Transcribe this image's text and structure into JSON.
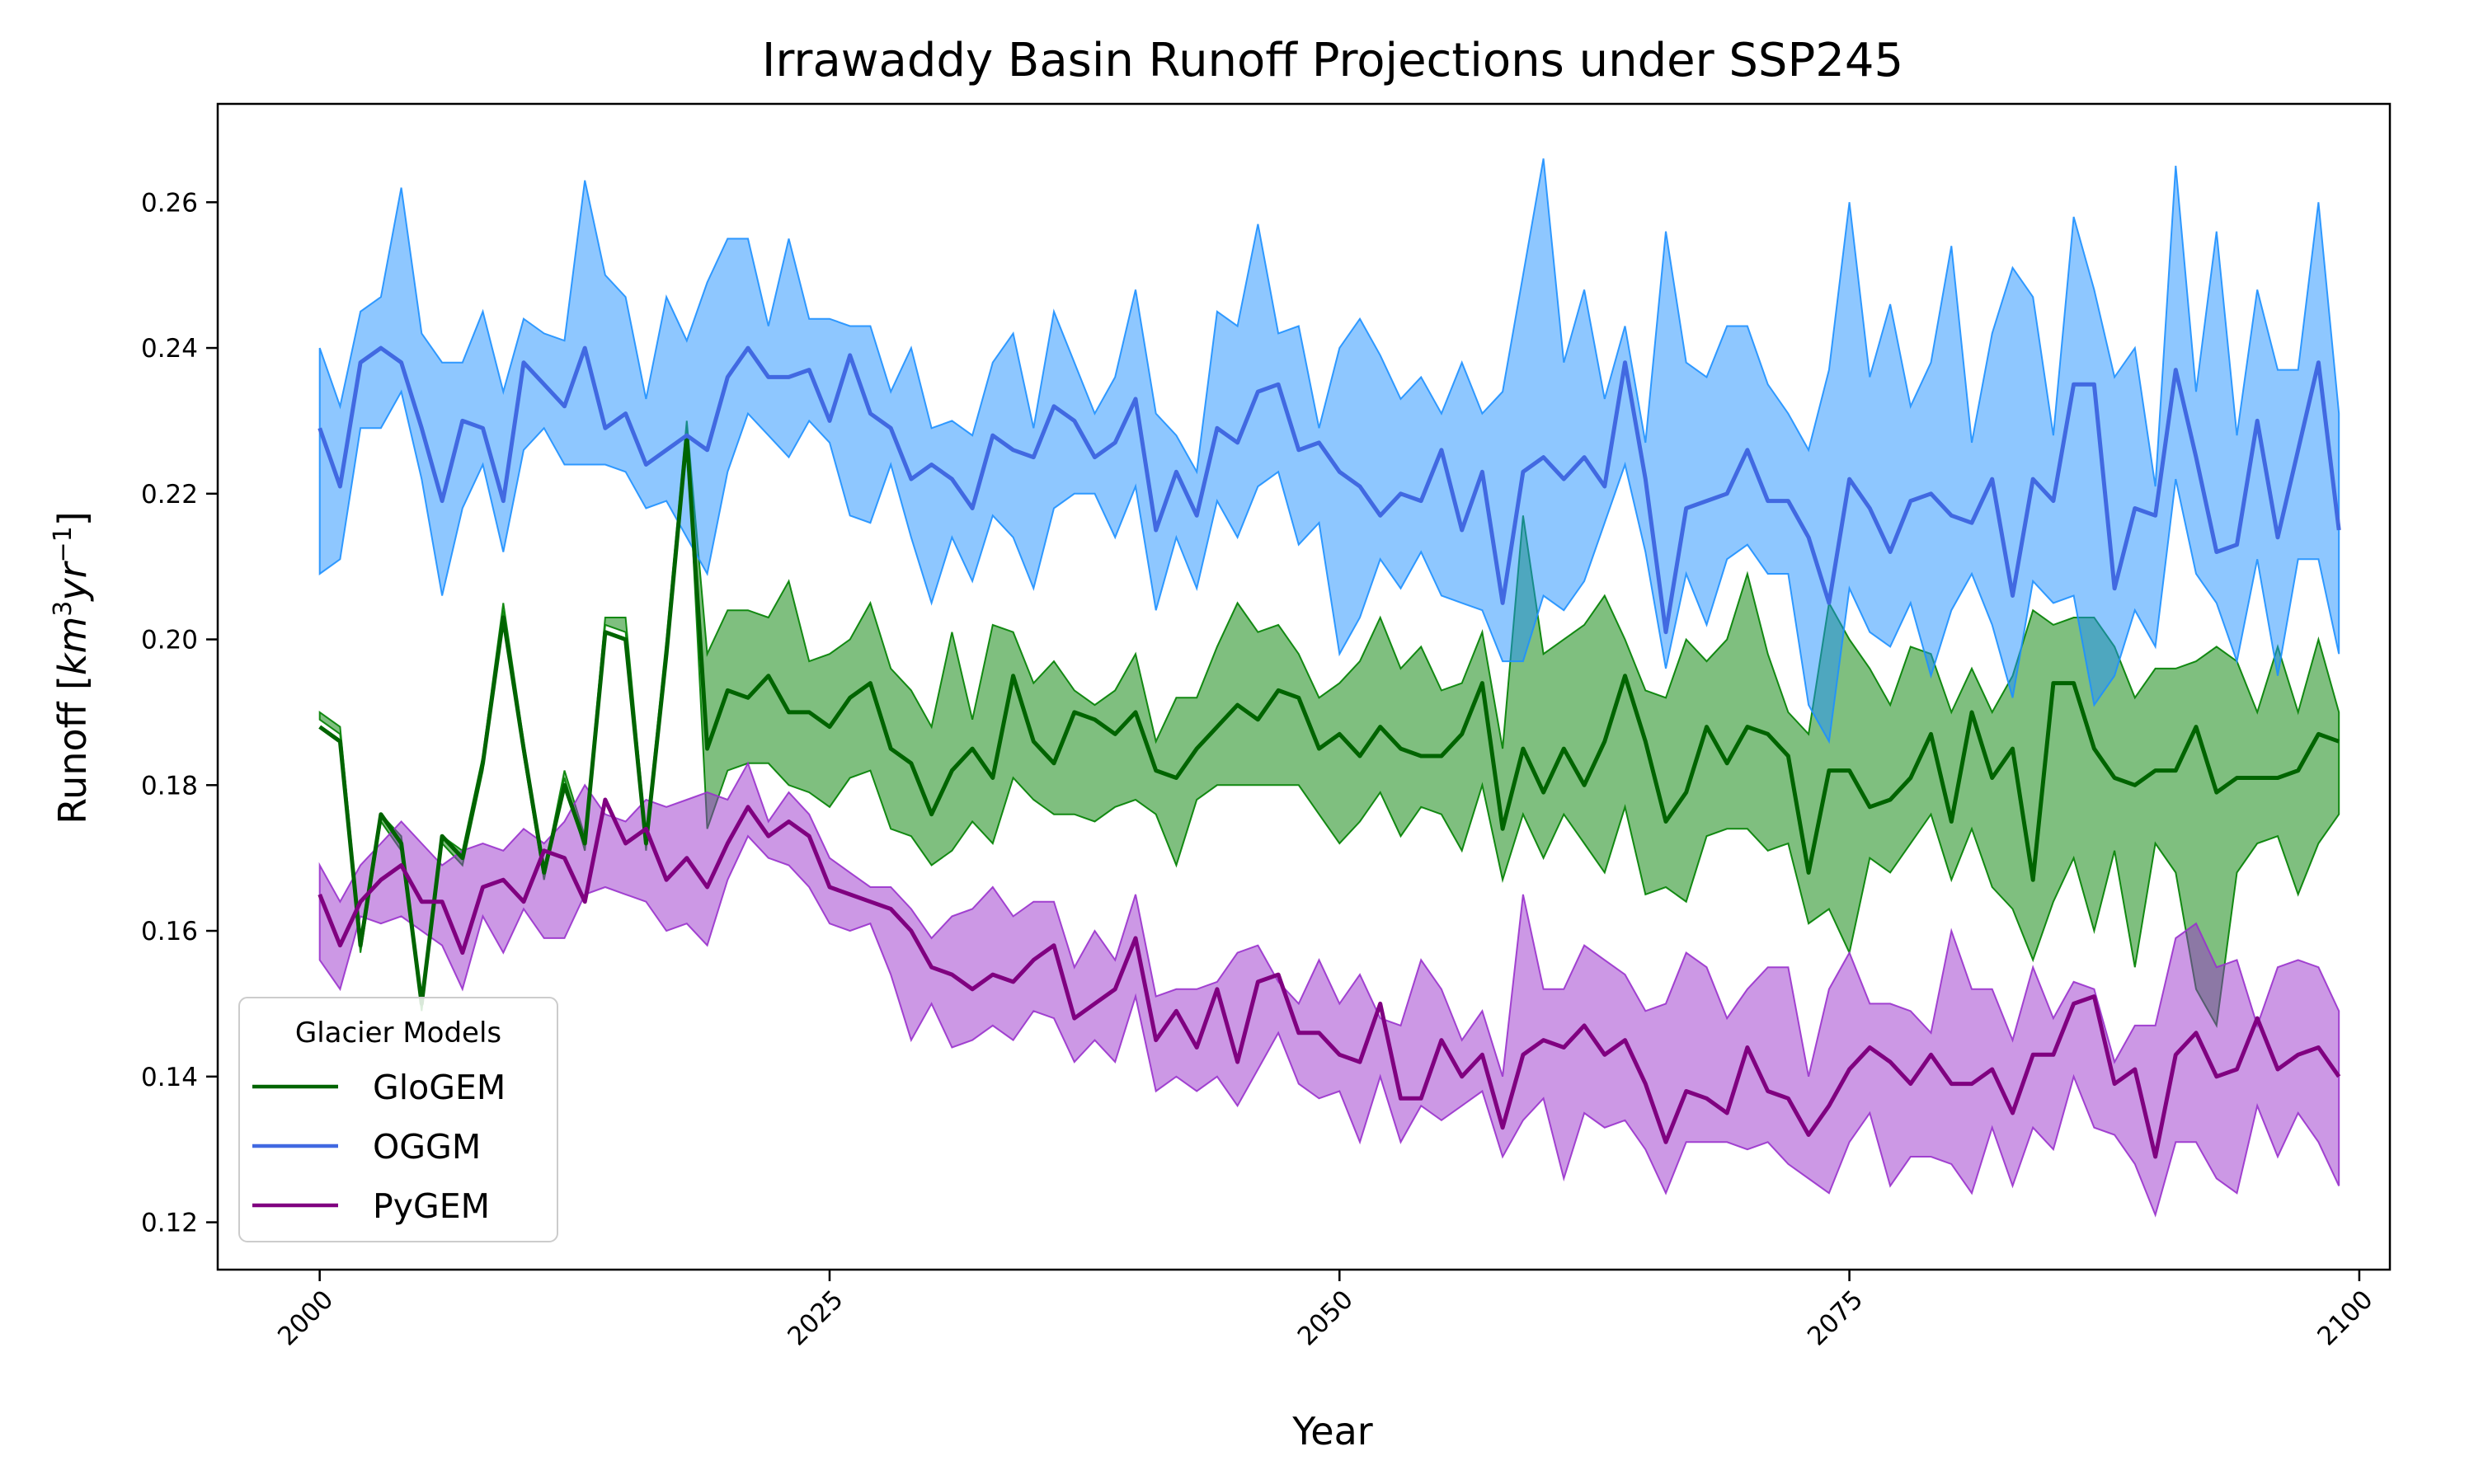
{
  "chart_data": {
    "type": "line",
    "title": "Irrawaddy Basin Runoff Projections under SSP245",
    "xlabel": "Year",
    "ylabel": "Runoff [km³yr⁻¹]",
    "ylabel_parts": {
      "base": "Runoff [",
      "var1": "km",
      "sup1": "3",
      "var2": "yr",
      "sup2": "−1",
      "close": "]"
    },
    "xlim": [
      1995,
      2101.5
    ],
    "ylim": [
      0.1135,
      0.2735
    ],
    "x_ticks": [
      2000,
      2025,
      2050,
      2075,
      2100
    ],
    "y_ticks": [
      0.12,
      0.14,
      0.16,
      0.18,
      0.2,
      0.22,
      0.24,
      0.26
    ],
    "y_tick_labels": [
      "0.12",
      "0.14",
      "0.16",
      "0.18",
      "0.20",
      "0.22",
      "0.24",
      "0.26"
    ],
    "x_tick_rotation": 45,
    "grid": false,
    "legend": {
      "title": "Glacier Models",
      "placement": "lower-left"
    },
    "x_start": 2000,
    "series": [
      {
        "name": "GloGEM",
        "color": "#006400",
        "fill": "#008000",
        "mean": [
          0.188,
          0.186,
          0.158,
          0.176,
          0.172,
          0.15,
          0.173,
          0.17,
          0.183,
          0.203,
          0.185,
          0.168,
          0.18,
          0.172,
          0.201,
          0.2,
          0.172,
          0.198,
          0.228,
          0.185,
          0.193,
          0.192,
          0.195,
          0.19,
          0.19,
          0.188,
          0.192,
          0.194,
          0.185,
          0.183,
          0.176,
          0.182,
          0.185,
          0.181,
          0.195,
          0.186,
          0.183,
          0.19,
          0.189,
          0.187,
          0.19,
          0.182,
          0.181,
          0.185,
          0.188,
          0.191,
          0.189,
          0.193,
          0.192,
          0.185,
          0.187,
          0.184,
          0.188,
          0.185,
          0.184,
          0.184,
          0.187,
          0.194,
          0.174,
          0.185,
          0.179,
          0.185,
          0.18,
          0.186,
          0.195,
          0.186,
          0.175,
          0.179,
          0.188,
          0.183,
          0.188,
          0.187,
          0.184,
          0.168,
          0.182,
          0.182,
          0.177,
          0.178,
          0.181,
          0.187,
          0.175,
          0.19,
          0.181,
          0.185,
          0.167,
          0.194,
          0.194,
          0.185,
          0.181,
          0.18,
          0.182,
          0.182,
          0.188,
          0.179,
          0.181,
          0.181,
          0.181,
          0.182,
          0.187,
          0.186
        ],
        "lower": [
          0.189,
          0.187,
          0.157,
          0.175,
          0.171,
          0.149,
          0.172,
          0.169,
          0.182,
          0.204,
          0.184,
          0.167,
          0.181,
          0.171,
          0.202,
          0.201,
          0.171,
          0.199,
          0.229,
          0.174,
          0.182,
          0.183,
          0.183,
          0.18,
          0.179,
          0.177,
          0.181,
          0.182,
          0.174,
          0.173,
          0.169,
          0.171,
          0.175,
          0.172,
          0.181,
          0.178,
          0.176,
          0.176,
          0.175,
          0.177,
          0.178,
          0.176,
          0.169,
          0.178,
          0.18,
          0.18,
          0.18,
          0.18,
          0.18,
          0.176,
          0.172,
          0.175,
          0.179,
          0.173,
          0.177,
          0.176,
          0.171,
          0.18,
          0.167,
          0.176,
          0.17,
          0.176,
          0.172,
          0.168,
          0.177,
          0.165,
          0.166,
          0.164,
          0.173,
          0.174,
          0.174,
          0.171,
          0.172,
          0.161,
          0.163,
          0.157,
          0.17,
          0.168,
          0.172,
          0.176,
          0.167,
          0.174,
          0.166,
          0.163,
          0.156,
          0.164,
          0.17,
          0.16,
          0.171,
          0.155,
          0.172,
          0.168,
          0.152,
          0.147,
          0.168,
          0.172,
          0.173,
          0.165,
          0.172,
          0.176
        ],
        "upper": [
          0.19,
          0.188,
          0.159,
          0.176,
          0.173,
          0.151,
          0.173,
          0.171,
          0.184,
          0.205,
          0.186,
          0.168,
          0.182,
          0.173,
          0.203,
          0.203,
          0.173,
          0.2,
          0.23,
          0.198,
          0.204,
          0.204,
          0.203,
          0.208,
          0.197,
          0.198,
          0.2,
          0.205,
          0.196,
          0.193,
          0.188,
          0.201,
          0.189,
          0.202,
          0.201,
          0.194,
          0.197,
          0.193,
          0.191,
          0.193,
          0.198,
          0.186,
          0.192,
          0.192,
          0.199,
          0.205,
          0.201,
          0.202,
          0.198,
          0.192,
          0.194,
          0.197,
          0.203,
          0.196,
          0.199,
          0.193,
          0.194,
          0.201,
          0.185,
          0.217,
          0.198,
          0.2,
          0.202,
          0.206,
          0.2,
          0.193,
          0.192,
          0.2,
          0.197,
          0.2,
          0.209,
          0.198,
          0.19,
          0.187,
          0.205,
          0.2,
          0.196,
          0.191,
          0.199,
          0.198,
          0.19,
          0.196,
          0.19,
          0.195,
          0.204,
          0.202,
          0.203,
          0.203,
          0.199,
          0.192,
          0.196,
          0.196,
          0.197,
          0.199,
          0.197,
          0.19,
          0.199,
          0.19,
          0.2,
          0.19
        ]
      },
      {
        "name": "OGGM",
        "color": "#4169e1",
        "fill": "#1e90ff",
        "mean": [
          0.229,
          0.221,
          0.238,
          0.24,
          0.238,
          0.229,
          0.219,
          0.23,
          0.229,
          0.219,
          0.238,
          0.235,
          0.232,
          0.24,
          0.229,
          0.231,
          0.224,
          0.226,
          0.228,
          0.226,
          0.236,
          0.24,
          0.236,
          0.236,
          0.237,
          0.23,
          0.239,
          0.231,
          0.229,
          0.222,
          0.224,
          0.222,
          0.218,
          0.228,
          0.226,
          0.225,
          0.232,
          0.23,
          0.225,
          0.227,
          0.233,
          0.215,
          0.223,
          0.217,
          0.229,
          0.227,
          0.234,
          0.235,
          0.226,
          0.227,
          0.223,
          0.221,
          0.217,
          0.22,
          0.219,
          0.226,
          0.215,
          0.223,
          0.205,
          0.223,
          0.225,
          0.222,
          0.225,
          0.221,
          0.238,
          0.222,
          0.201,
          0.218,
          0.219,
          0.22,
          0.226,
          0.219,
          0.219,
          0.214,
          0.205,
          0.222,
          0.218,
          0.212,
          0.219,
          0.22,
          0.217,
          0.216,
          0.222,
          0.206,
          0.222,
          0.219,
          0.235,
          0.235,
          0.207,
          0.218,
          0.217,
          0.237,
          0.225,
          0.212,
          0.213,
          0.23,
          0.214,
          0.226,
          0.238,
          0.215
        ],
        "lower": [
          0.209,
          0.211,
          0.229,
          0.229,
          0.234,
          0.222,
          0.206,
          0.218,
          0.224,
          0.212,
          0.226,
          0.229,
          0.224,
          0.224,
          0.224,
          0.223,
          0.218,
          0.219,
          0.214,
          0.209,
          0.223,
          0.231,
          0.228,
          0.225,
          0.23,
          0.227,
          0.217,
          0.216,
          0.224,
          0.214,
          0.205,
          0.214,
          0.208,
          0.217,
          0.214,
          0.207,
          0.218,
          0.22,
          0.22,
          0.214,
          0.221,
          0.204,
          0.214,
          0.207,
          0.219,
          0.214,
          0.221,
          0.223,
          0.213,
          0.216,
          0.198,
          0.203,
          0.211,
          0.207,
          0.212,
          0.206,
          0.205,
          0.204,
          0.197,
          0.197,
          0.206,
          0.204,
          0.208,
          0.216,
          0.224,
          0.212,
          0.196,
          0.209,
          0.202,
          0.211,
          0.213,
          0.209,
          0.209,
          0.191,
          0.186,
          0.207,
          0.201,
          0.199,
          0.205,
          0.195,
          0.204,
          0.209,
          0.202,
          0.192,
          0.208,
          0.205,
          0.206,
          0.191,
          0.195,
          0.204,
          0.199,
          0.222,
          0.209,
          0.205,
          0.197,
          0.211,
          0.195,
          0.211,
          0.211,
          0.198
        ],
        "upper": [
          0.24,
          0.232,
          0.245,
          0.247,
          0.262,
          0.242,
          0.238,
          0.238,
          0.245,
          0.234,
          0.244,
          0.242,
          0.241,
          0.263,
          0.25,
          0.247,
          0.233,
          0.247,
          0.241,
          0.249,
          0.255,
          0.255,
          0.243,
          0.255,
          0.244,
          0.244,
          0.243,
          0.243,
          0.234,
          0.24,
          0.229,
          0.23,
          0.228,
          0.238,
          0.242,
          0.229,
          0.245,
          0.238,
          0.231,
          0.236,
          0.248,
          0.231,
          0.228,
          0.223,
          0.245,
          0.243,
          0.257,
          0.242,
          0.243,
          0.229,
          0.24,
          0.244,
          0.239,
          0.233,
          0.236,
          0.231,
          0.238,
          0.231,
          0.234,
          0.25,
          0.266,
          0.238,
          0.248,
          0.233,
          0.243,
          0.227,
          0.256,
          0.238,
          0.236,
          0.243,
          0.243,
          0.235,
          0.231,
          0.226,
          0.237,
          0.26,
          0.236,
          0.246,
          0.232,
          0.238,
          0.254,
          0.227,
          0.242,
          0.251,
          0.247,
          0.228,
          0.258,
          0.248,
          0.236,
          0.24,
          0.221,
          0.265,
          0.234,
          0.256,
          0.228,
          0.248,
          0.237,
          0.237,
          0.26,
          0.231
        ]
      },
      {
        "name": "PyGEM",
        "color": "#800080",
        "fill": "#9932cc",
        "mean": [
          0.165,
          0.158,
          0.164,
          0.167,
          0.169,
          0.164,
          0.164,
          0.157,
          0.166,
          0.167,
          0.164,
          0.171,
          0.17,
          0.164,
          0.178,
          0.172,
          0.174,
          0.167,
          0.17,
          0.166,
          0.172,
          0.177,
          0.173,
          0.175,
          0.173,
          0.166,
          0.165,
          0.164,
          0.163,
          0.16,
          0.155,
          0.154,
          0.152,
          0.154,
          0.153,
          0.156,
          0.158,
          0.148,
          0.15,
          0.152,
          0.159,
          0.145,
          0.149,
          0.144,
          0.152,
          0.142,
          0.153,
          0.154,
          0.146,
          0.146,
          0.143,
          0.142,
          0.15,
          0.137,
          0.137,
          0.145,
          0.14,
          0.143,
          0.133,
          0.143,
          0.145,
          0.144,
          0.147,
          0.143,
          0.145,
          0.139,
          0.131,
          0.138,
          0.137,
          0.135,
          0.144,
          0.138,
          0.137,
          0.132,
          0.136,
          0.141,
          0.144,
          0.142,
          0.139,
          0.143,
          0.139,
          0.139,
          0.141,
          0.135,
          0.143,
          0.143,
          0.15,
          0.151,
          0.139,
          0.141,
          0.129,
          0.143,
          0.146,
          0.14,
          0.141,
          0.148,
          0.141,
          0.143,
          0.144,
          0.14
        ],
        "lower": [
          0.156,
          0.152,
          0.162,
          0.161,
          0.162,
          0.16,
          0.158,
          0.152,
          0.162,
          0.157,
          0.163,
          0.159,
          0.159,
          0.165,
          0.166,
          0.165,
          0.164,
          0.16,
          0.161,
          0.158,
          0.167,
          0.173,
          0.17,
          0.169,
          0.166,
          0.161,
          0.16,
          0.161,
          0.154,
          0.145,
          0.15,
          0.144,
          0.145,
          0.147,
          0.145,
          0.149,
          0.148,
          0.142,
          0.145,
          0.142,
          0.151,
          0.138,
          0.14,
          0.138,
          0.14,
          0.136,
          0.141,
          0.146,
          0.139,
          0.137,
          0.138,
          0.131,
          0.14,
          0.131,
          0.136,
          0.134,
          0.136,
          0.138,
          0.129,
          0.134,
          0.137,
          0.126,
          0.135,
          0.133,
          0.134,
          0.13,
          0.124,
          0.131,
          0.131,
          0.131,
          0.13,
          0.131,
          0.128,
          0.126,
          0.124,
          0.131,
          0.135,
          0.125,
          0.129,
          0.129,
          0.128,
          0.124,
          0.133,
          0.125,
          0.133,
          0.13,
          0.14,
          0.133,
          0.132,
          0.128,
          0.121,
          0.131,
          0.131,
          0.126,
          0.124,
          0.136,
          0.129,
          0.135,
          0.131,
          0.125
        ],
        "upper": [
          0.169,
          0.164,
          0.169,
          0.172,
          0.175,
          0.172,
          0.169,
          0.171,
          0.172,
          0.171,
          0.174,
          0.172,
          0.175,
          0.18,
          0.176,
          0.175,
          0.178,
          0.177,
          0.178,
          0.179,
          0.178,
          0.183,
          0.175,
          0.179,
          0.176,
          0.17,
          0.168,
          0.166,
          0.166,
          0.163,
          0.159,
          0.162,
          0.163,
          0.166,
          0.162,
          0.164,
          0.164,
          0.155,
          0.16,
          0.156,
          0.165,
          0.151,
          0.152,
          0.152,
          0.153,
          0.157,
          0.158,
          0.153,
          0.15,
          0.156,
          0.15,
          0.154,
          0.148,
          0.147,
          0.156,
          0.152,
          0.145,
          0.149,
          0.14,
          0.165,
          0.152,
          0.152,
          0.158,
          0.156,
          0.154,
          0.149,
          0.15,
          0.157,
          0.155,
          0.148,
          0.152,
          0.155,
          0.155,
          0.14,
          0.152,
          0.157,
          0.15,
          0.15,
          0.149,
          0.146,
          0.16,
          0.152,
          0.152,
          0.145,
          0.155,
          0.148,
          0.153,
          0.152,
          0.142,
          0.147,
          0.147,
          0.159,
          0.161,
          0.155,
          0.156,
          0.147,
          0.155,
          0.156,
          0.155,
          0.149
        ]
      }
    ]
  }
}
